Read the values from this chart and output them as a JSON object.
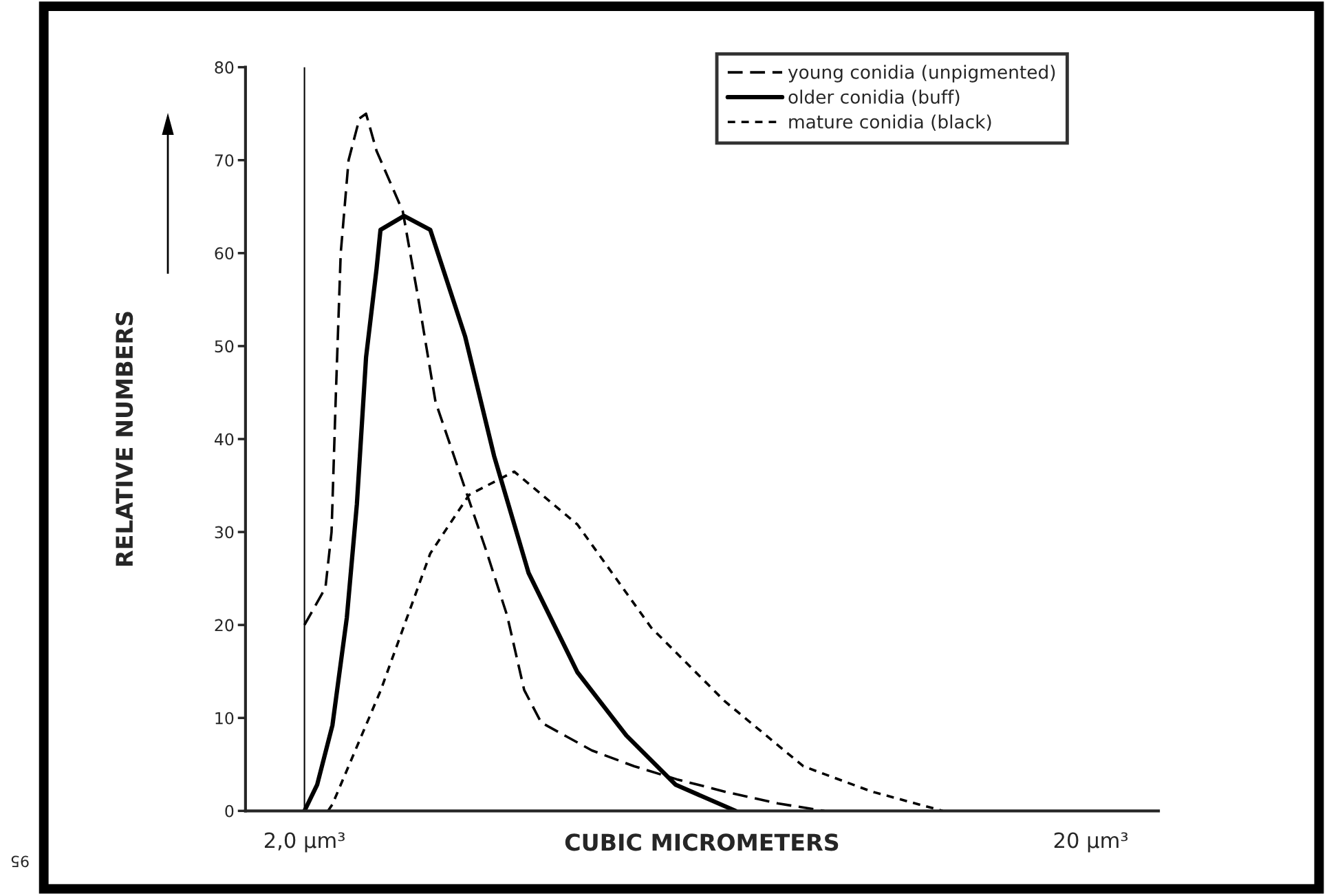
{
  "chart_data": {
    "type": "line",
    "xlabel": "CUBIC MICROMETERS",
    "ylabel": "RELATIVE NUMBERS",
    "xlim": [
      0.65,
      21.55
    ],
    "xticks": [
      {
        "value": 2,
        "label": "2,0 µm³"
      },
      {
        "value": 20,
        "label": "20 µm³"
      }
    ],
    "ylim": [
      0,
      80
    ],
    "yticks": [
      0,
      10,
      20,
      30,
      40,
      50,
      60,
      70,
      80
    ],
    "grid": false,
    "legend": "top right",
    "marker": "none",
    "ref_lines": [
      {
        "axis": "x",
        "value": 2,
        "color": "#000000",
        "line_style": "solid"
      }
    ],
    "annotations": [
      "95"
    ],
    "series": [
      {
        "name": "young conidia (unpigmented)",
        "color": "#000000",
        "line_style": "dashed",
        "x": [
          2.0,
          2.48,
          2.62,
          2.72,
          2.83,
          3.01,
          3.26,
          3.41,
          3.65,
          4.25,
          4.61,
          5.0,
          5.58,
          6.16,
          6.64,
          7.03,
          7.42,
          8.0,
          8.58,
          9.55,
          10.52,
          11.68,
          12.84,
          13.9
        ],
        "values": [
          20,
          24,
          30,
          45,
          60,
          70,
          74.5,
          75,
          71,
          64.5,
          55,
          44,
          36,
          28,
          21,
          13,
          9.5,
          8,
          6.5,
          4.8,
          3.4,
          2,
          0.8,
          0
        ]
      },
      {
        "name": "older conidia (buff)",
        "color": "#000000",
        "line_style": "solid",
        "x": [
          2.0,
          2.29,
          2.64,
          2.97,
          3.2,
          3.41,
          3.65,
          3.74,
          4.28,
          4.88,
          5.68,
          6.34,
          7.13,
          8.25,
          9.37,
          10.5,
          11.87
        ],
        "values": [
          0,
          2.8,
          9.2,
          20.8,
          33,
          48.8,
          58.3,
          62.5,
          64,
          62.5,
          51,
          38.2,
          25.6,
          14.9,
          8.1,
          2.8,
          0
        ]
      },
      {
        "name": "mature conidia (black)",
        "color": "#000000",
        "line_style": "dashed",
        "x": [
          2.54,
          2.64,
          3.74,
          4.88,
          5.77,
          6.8,
          8.25,
          9.94,
          11.62,
          13.42,
          14.97,
          16.61
        ],
        "values": [
          0,
          0.7,
          12.9,
          27.7,
          34,
          36.5,
          30.8,
          19.7,
          11.8,
          4.8,
          2.1,
          0
        ]
      }
    ]
  }
}
